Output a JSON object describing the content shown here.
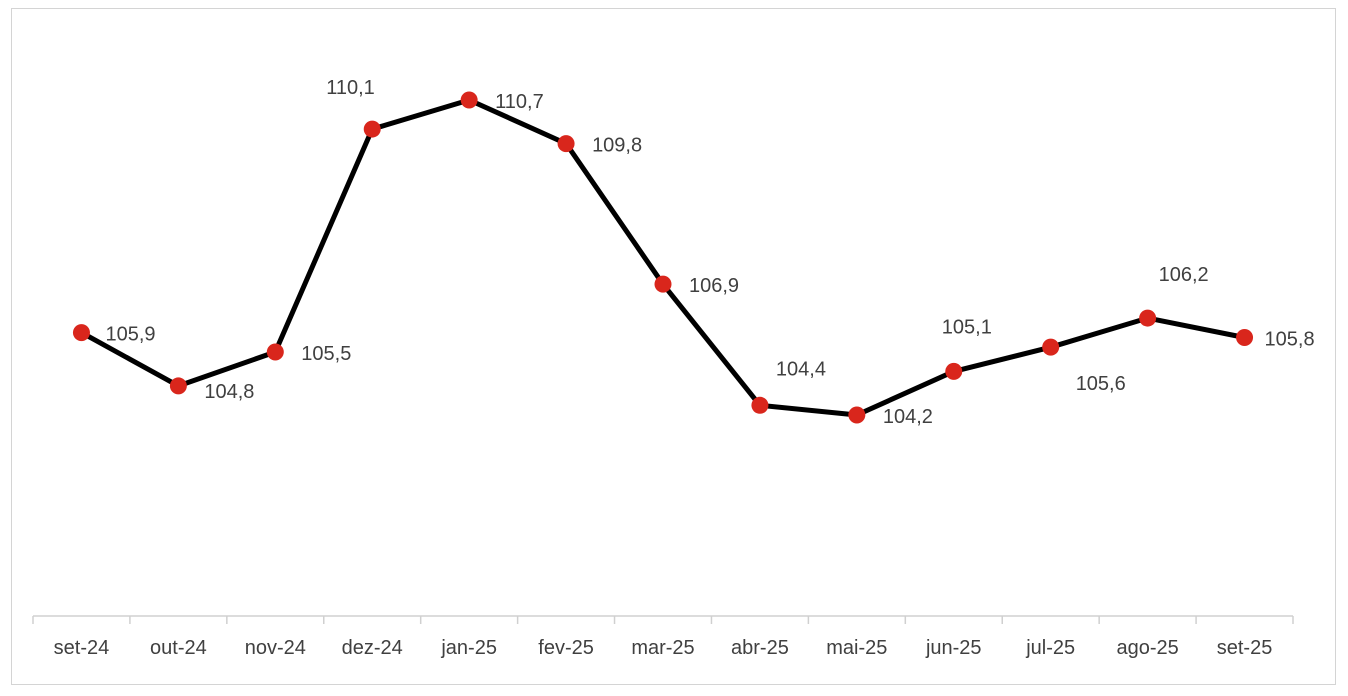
{
  "chart_data": {
    "type": "line",
    "categories": [
      "set-24",
      "out-24",
      "nov-24",
      "dez-24",
      "jan-25",
      "fev-25",
      "mar-25",
      "abr-25",
      "mai-25",
      "jun-25",
      "jul-25",
      "ago-25",
      "set-25"
    ],
    "series": [
      {
        "values": [
          105.9,
          104.8,
          105.5,
          110.1,
          110.7,
          109.8,
          106.9,
          104.4,
          104.2,
          105.1,
          105.6,
          106.2,
          105.8
        ],
        "labels": [
          "105,9",
          "104,8",
          "105,5",
          "110,1",
          "110,7",
          "109,8",
          "106,9",
          "104,4",
          "104,2",
          "105,1",
          "105,6",
          "106,2",
          "105,8"
        ]
      }
    ],
    "title": "",
    "xlabel": "",
    "ylabel": "",
    "grid": false,
    "legend": "none",
    "line_color": "#000000",
    "marker_color": "#d9261c"
  }
}
